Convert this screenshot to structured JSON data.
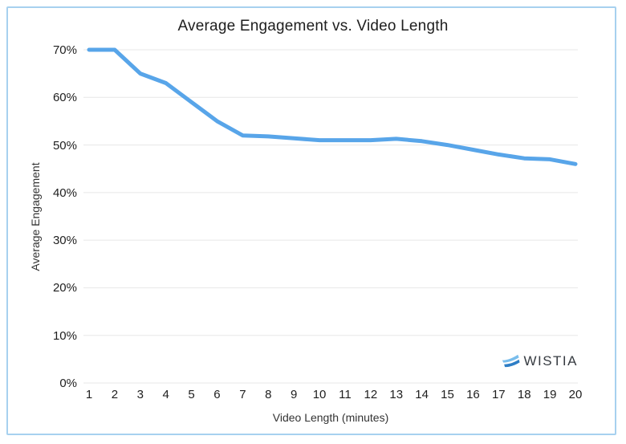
{
  "chart_data": {
    "type": "line",
    "title": "Average Engagement vs. Video Length",
    "xlabel": "Video Length (minutes)",
    "ylabel": "Average Engagement",
    "x": [
      1,
      2,
      3,
      4,
      5,
      6,
      7,
      8,
      9,
      10,
      11,
      12,
      13,
      14,
      15,
      16,
      17,
      18,
      19,
      20
    ],
    "xtick_labels": [
      "1",
      "2",
      "3",
      "4",
      "5",
      "6",
      "7",
      "8",
      "9",
      "10",
      "11",
      "12",
      "13",
      "14",
      "15",
      "16",
      "17",
      "18",
      "19",
      "20"
    ],
    "series": [
      {
        "name": "Average Engagement",
        "values": [
          70,
          70,
          65,
          63,
          59,
          55,
          52,
          51.8,
          51.4,
          51,
          51,
          51,
          51.3,
          50.8,
          50,
          49,
          48,
          47.2,
          47,
          46
        ]
      }
    ],
    "ylim": [
      0,
      70
    ],
    "yticks": [
      0,
      10,
      20,
      30,
      40,
      50,
      60,
      70
    ],
    "ytick_labels": [
      "0%",
      "10%",
      "20%",
      "30%",
      "40%",
      "50%",
      "60%",
      "70%"
    ],
    "grid": true,
    "legend": "none",
    "line_color": "#58a5e9"
  },
  "branding": {
    "logo_text": "WISTIA"
  },
  "colors": {
    "frame_border": "#a7d1ef",
    "line": "#58a5e9",
    "gridline": "#e7e7e7",
    "title_text": "#1e1e1e",
    "axis_text": "#333333",
    "logo_text": "#363b41",
    "logo_blue_light": "#79bdec",
    "logo_blue_dark": "#2e7ec6"
  }
}
